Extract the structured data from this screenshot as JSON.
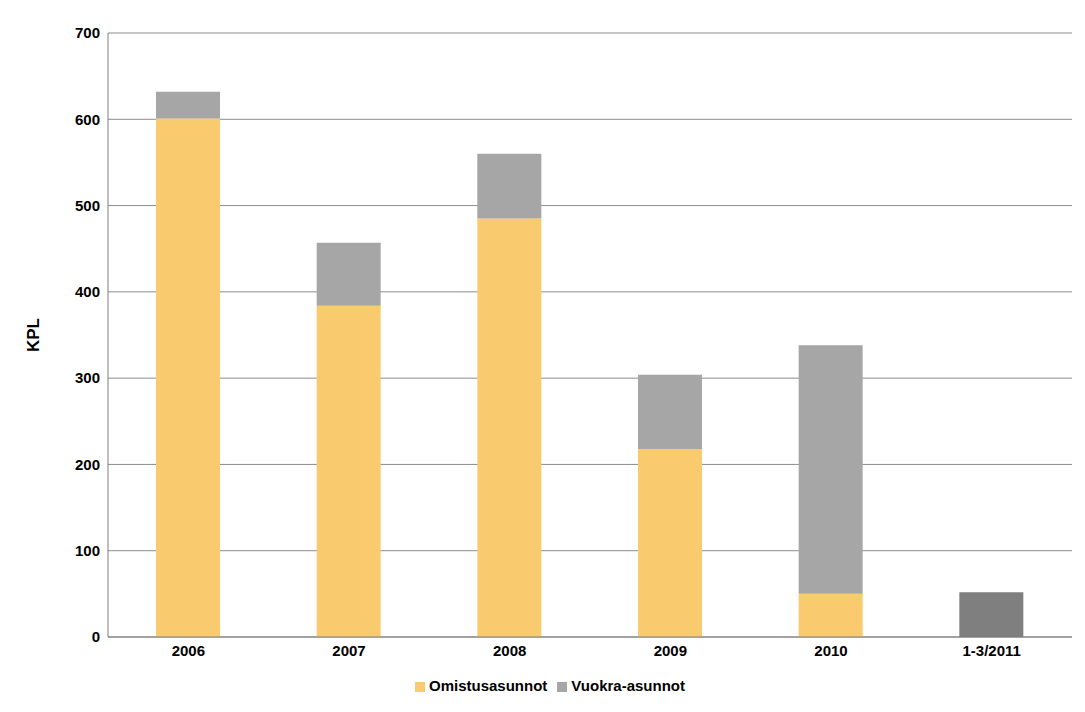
{
  "chart_data": {
    "type": "bar",
    "y_label": "KPL",
    "categories": [
      "2006",
      "2007",
      "2008",
      "2009",
      "2010",
      "1-3/2011"
    ],
    "series": [
      {
        "name": "Omistusasunnot",
        "color": "#facb6e",
        "values": [
          601,
          384,
          485,
          218,
          50,
          null
        ]
      },
      {
        "name": "Vuokra-asunnot",
        "color": "#a6a6a6",
        "colors": [
          "#a6a6a6",
          "#a6a6a6",
          "#a6a6a6",
          "#a6a6a6",
          "#a6a6a6",
          "#7f7f7f"
        ],
        "values": [
          31,
          73,
          75,
          86,
          288,
          52
        ]
      }
    ],
    "ylim": [
      0,
      700
    ],
    "yticks": [
      0,
      100,
      200,
      300,
      400,
      500,
      600,
      700
    ],
    "stacked": true,
    "grid": true,
    "legend": "bottom"
  }
}
